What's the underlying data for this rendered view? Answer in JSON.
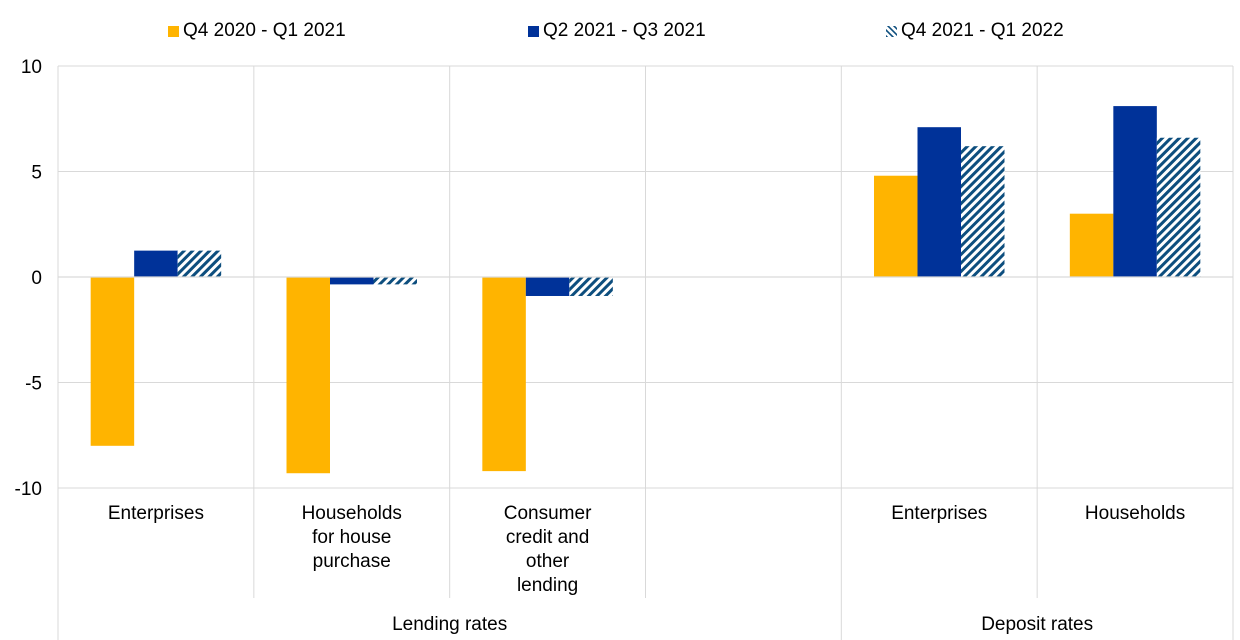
{
  "chart_data": {
    "type": "bar",
    "title": "",
    "xlabel": "",
    "ylabel": "",
    "ylim": [
      -10,
      10
    ],
    "yticks": [
      10,
      5,
      0,
      -5,
      -10
    ],
    "grid": true,
    "legend_position": "top",
    "groups": [
      {
        "label": "Lending rates",
        "categories": [
          "Enterprises",
          "Households\nfor house\npurchase",
          "Consumer\ncredit and\nother\nlending",
          ""
        ]
      },
      {
        "label": "Deposit rates",
        "categories": [
          "Enterprises",
          "Households"
        ]
      }
    ],
    "categories": [
      "Enterprises",
      "Households\nfor house\npurchase",
      "Consumer\ncredit and\nother\nlending",
      "",
      "Enterprises",
      "Households"
    ],
    "series": [
      {
        "name": "Q4 2020 - Q1 2021",
        "color": "#FFB400",
        "pattern": "solid",
        "values": [
          -8.0,
          -9.3,
          -9.2,
          null,
          4.8,
          3.0
        ]
      },
      {
        "name": "Q2 2021 - Q3 2021",
        "color": "#003299",
        "pattern": "solid",
        "values": [
          1.25,
          -0.35,
          -0.9,
          null,
          7.1,
          8.1
        ]
      },
      {
        "name": "Q4 2021 - Q1 2022",
        "color": "#0D4E7E",
        "pattern": "hatched",
        "values": [
          1.25,
          -0.35,
          -0.9,
          null,
          6.2,
          6.6
        ]
      }
    ]
  }
}
